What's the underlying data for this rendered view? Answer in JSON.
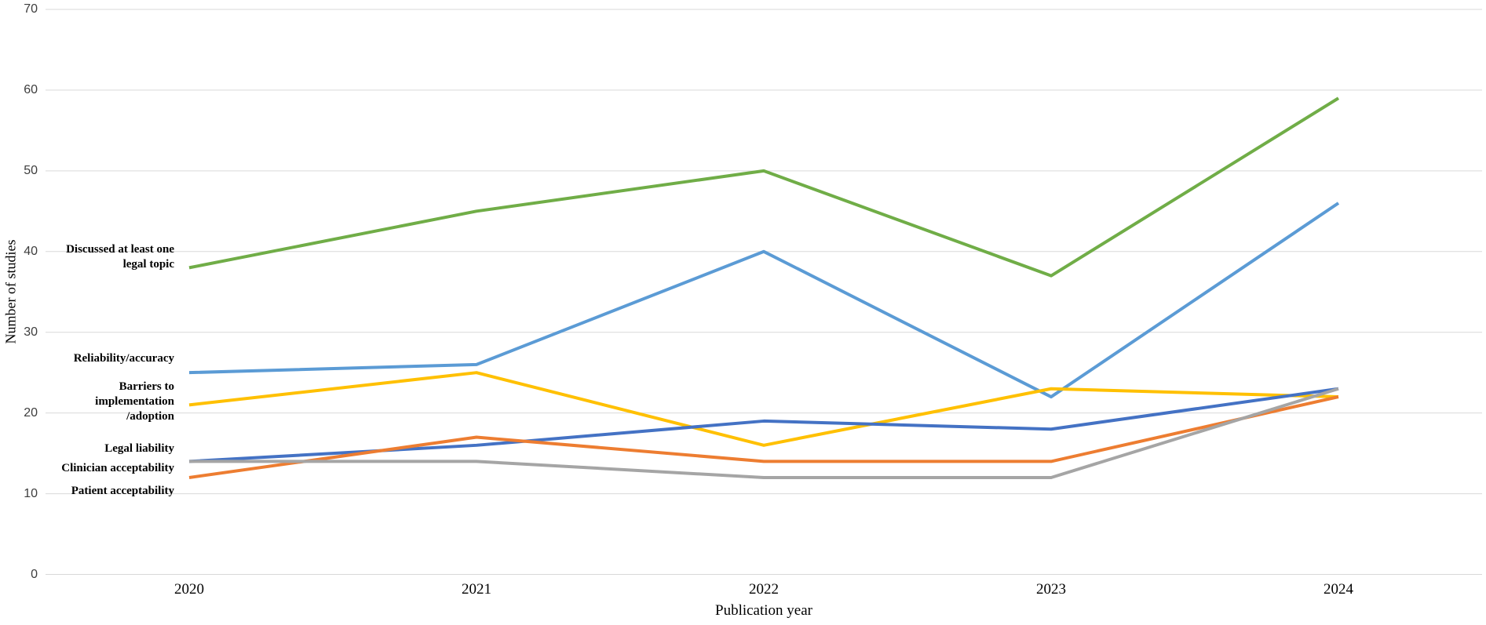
{
  "chart_data": {
    "type": "line",
    "title": "",
    "xlabel": "Publication year",
    "ylabel": "Number of studies",
    "categories": [
      "2020",
      "2021",
      "2022",
      "2023",
      "2024"
    ],
    "ylim": [
      0,
      70
    ],
    "ytick_step": 10,
    "yticks": [
      0,
      10,
      20,
      30,
      40,
      50,
      60,
      70
    ],
    "grid": "horizontal",
    "gridline_color": "#d9d9d9",
    "legend_position": "inline-left-data-labels",
    "series": [
      {
        "name": "Discussed at least one legal topic",
        "label": "Discussed at least one\nlegal topic",
        "color": "#70AD47",
        "values": [
          38,
          45,
          50,
          37,
          59
        ]
      },
      {
        "name": "Reliability/accuracy",
        "label": "Reliability/accuracy",
        "color": "#5B9BD5",
        "values": [
          25,
          26,
          40,
          22,
          46
        ]
      },
      {
        "name": "Barriers to implementation/adoption",
        "label": "Barriers to\nimplementation\n/adoption",
        "color": "#FFC000",
        "values": [
          21,
          25,
          16,
          23,
          22
        ]
      },
      {
        "name": "Legal liability",
        "label": "Legal liability",
        "color": "#4472C4",
        "values": [
          14,
          16,
          19,
          18,
          23
        ]
      },
      {
        "name": "Clinician acceptability",
        "label": "Clinician acceptability",
        "color": "#ED7D31",
        "values": [
          12,
          17,
          14,
          14,
          22
        ]
      },
      {
        "name": "Patient acceptability",
        "label": "Patient acceptability",
        "color": "#A5A5A5",
        "values": [
          14,
          14,
          12,
          12,
          23
        ]
      }
    ]
  }
}
